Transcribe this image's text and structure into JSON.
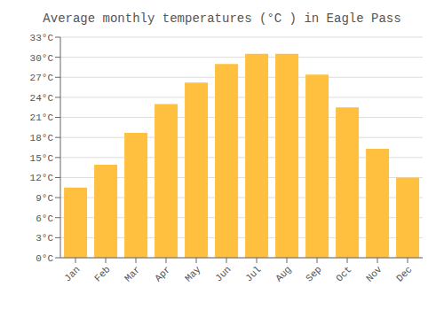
{
  "chart_data": {
    "type": "bar",
    "title": "Average monthly temperatures (°C ) in Eagle Pass",
    "categories": [
      "Jan",
      "Feb",
      "Mar",
      "Apr",
      "May",
      "Jun",
      "Jul",
      "Aug",
      "Sep",
      "Oct",
      "Nov",
      "Dec"
    ],
    "values": [
      10.5,
      13.9,
      18.7,
      23.0,
      26.2,
      29.0,
      30.5,
      30.5,
      27.4,
      22.5,
      16.3,
      12.0
    ],
    "color": "#FFC040",
    "ylim": [
      0,
      33
    ],
    "yticks": [
      {
        "value": 0,
        "label": "0°C"
      },
      {
        "value": 3,
        "label": "3°C"
      },
      {
        "value": 6,
        "label": "6°C"
      },
      {
        "value": 9,
        "label": "9°C"
      },
      {
        "value": 12,
        "label": "12°C"
      },
      {
        "value": 15,
        "label": "15°C"
      },
      {
        "value": 18,
        "label": "18°C"
      },
      {
        "value": 21,
        "label": "21°C"
      },
      {
        "value": 24,
        "label": "24°C"
      },
      {
        "value": 27,
        "label": "27°C"
      },
      {
        "value": 30,
        "label": "30°C"
      },
      {
        "value": 33,
        "label": "33°C"
      }
    ],
    "grid": true
  }
}
